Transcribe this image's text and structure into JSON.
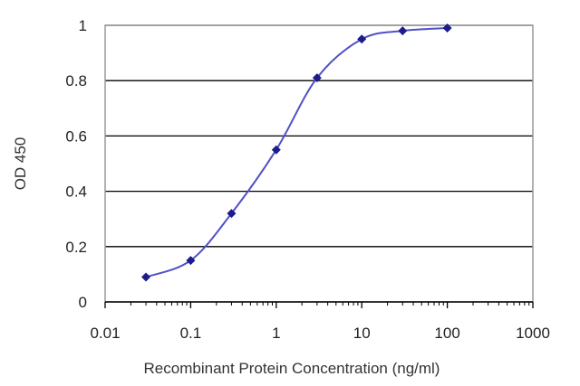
{
  "chart_data": {
    "type": "scatter",
    "title": "",
    "xlabel": "Recombinant Protein Concentration (ng/ml)",
    "ylabel": "OD 450",
    "x_scale": "log",
    "xlim": [
      0.01,
      1000
    ],
    "ylim": [
      0,
      1
    ],
    "x_ticks": [
      "0.01",
      "0.1",
      "1",
      "10",
      "100",
      "1000"
    ],
    "y_ticks": [
      "0",
      "0.2",
      "0.4",
      "0.6",
      "0.8",
      "1"
    ],
    "grid": "horizontal",
    "legend": "none",
    "series": [
      {
        "x": [
          0.03,
          0.1,
          0.3,
          1,
          3,
          10,
          30,
          100
        ],
        "y": [
          0.09,
          0.15,
          0.32,
          0.55,
          0.81,
          0.95,
          0.98,
          0.99
        ],
        "fit": "smooth curve through points"
      }
    ],
    "colors": {
      "marker": "#1c1c8a",
      "curve": "#5050c8",
      "grid": "#000000",
      "plot_border": "#999999"
    }
  }
}
